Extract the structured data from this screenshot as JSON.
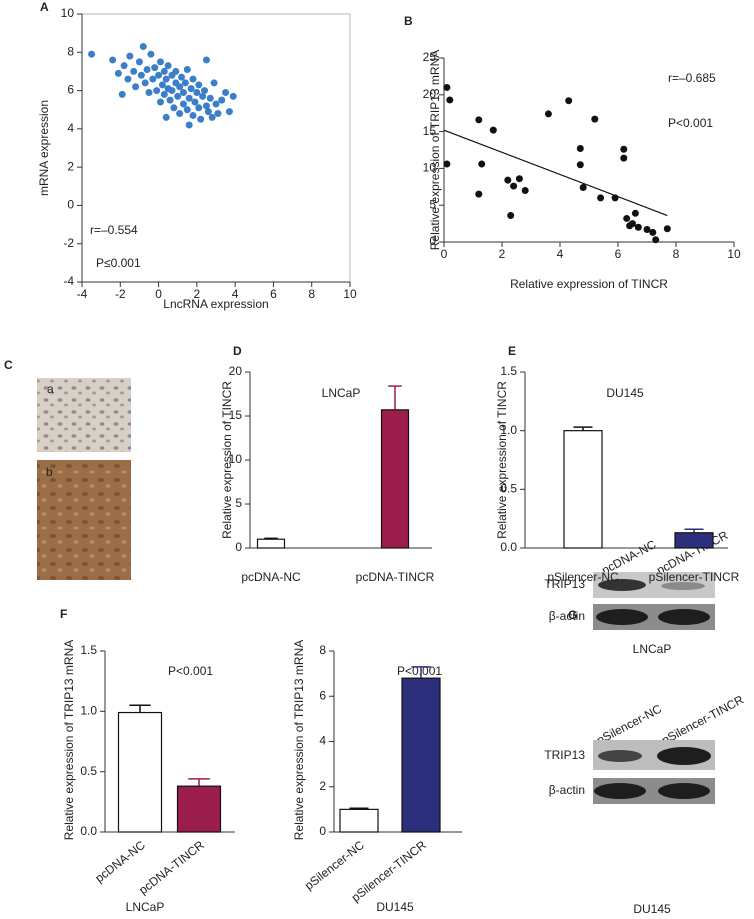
{
  "chart_data": [
    {
      "type": "scatter",
      "panel": "A",
      "color": "#3b7fca",
      "x": [
        -3.5,
        -2.4,
        -2.1,
        -1.8,
        -1.6,
        -1.5,
        -1.3,
        -1.2,
        -1.0,
        -0.9,
        -0.8,
        -0.7,
        -0.6,
        -0.5,
        -0.4,
        -0.3,
        -0.2,
        -0.1,
        0,
        0.1,
        0.1,
        0.2,
        0.3,
        0.3,
        0.4,
        0.5,
        0.5,
        0.6,
        0.7,
        0.7,
        0.8,
        0.9,
        0.9,
        1.0,
        1.1,
        1.1,
        1.2,
        1.3,
        1.3,
        1.4,
        1.5,
        1.5,
        1.6,
        1.7,
        1.8,
        1.8,
        1.9,
        2.0,
        2.1,
        2.1,
        2.2,
        2.3,
        2.4,
        2.5,
        2.6,
        2.7,
        2.8,
        2.9,
        3.0,
        3.1,
        3.3,
        3.5,
        3.7,
        2.5,
        -1.9,
        0.4,
        1.6,
        3.9
      ],
      "values": [
        7.9,
        7.6,
        6.9,
        7.3,
        6.6,
        7.8,
        7.0,
        6.2,
        7.5,
        6.8,
        8.3,
        6.4,
        7.1,
        5.9,
        7.9,
        6.6,
        7.2,
        6.0,
        6.8,
        5.4,
        7.5,
        6.3,
        7.0,
        5.8,
        6.6,
        6.1,
        7.3,
        5.5,
        6.8,
        6.0,
        5.1,
        6.4,
        7.0,
        5.7,
        6.2,
        4.8,
        6.7,
        5.9,
        5.3,
        6.4,
        5.0,
        7.1,
        5.6,
        6.1,
        4.7,
        6.6,
        5.4,
        5.9,
        5.1,
        6.3,
        4.5,
        5.7,
        6.0,
        5.2,
        4.9,
        5.6,
        4.6,
        6.4,
        5.3,
        4.8,
        5.5,
        5.9,
        4.9,
        7.6,
        5.8,
        4.6,
        4.2,
        5.7
      ],
      "xlabel": "LncRNA expression",
      "ylabel": "mRNA expression",
      "xlim": [
        -4,
        10
      ],
      "ylim": [
        -4,
        10
      ],
      "xticks": [
        -4,
        -2,
        0,
        2,
        4,
        6,
        8,
        10
      ],
      "yticks": [
        -4,
        -2,
        0,
        2,
        4,
        6,
        8,
        10
      ],
      "annotations": [
        "r=–0.554",
        "P≤0.001"
      ]
    },
    {
      "type": "scatter",
      "panel": "B",
      "color": "#111111",
      "x": [
        0.1,
        0.2,
        0.1,
        1.2,
        1.3,
        1.2,
        1.7,
        2.2,
        2.3,
        2.4,
        2.6,
        2.8,
        3.6,
        4.3,
        4.7,
        4.7,
        4.8,
        5.2,
        5.4,
        5.9,
        6.2,
        6.2,
        6.3,
        6.5,
        6.6,
        6.7,
        7.0,
        7.2,
        7.3,
        7.7,
        6.4
      ],
      "values": [
        21,
        19.3,
        10.6,
        16.6,
        10.6,
        6.5,
        15.2,
        8.4,
        3.6,
        7.6,
        8.6,
        7,
        17.4,
        19.2,
        10.5,
        12.7,
        7.4,
        16.7,
        6,
        6,
        12.6,
        11.4,
        3.2,
        2.5,
        3.9,
        2,
        1.7,
        1.3,
        0.3,
        1.8,
        2.2
      ],
      "fit_line": {
        "x": [
          0,
          7.7
        ],
        "values": [
          15.2,
          3.6
        ]
      },
      "xlabel": "Relative expression of TINCR",
      "ylabel": "Relative expression of TRIP13 mRNA",
      "xlim": [
        0,
        10
      ],
      "ylim": [
        0,
        25
      ],
      "xticks": [
        0,
        2,
        4,
        6,
        8,
        10
      ],
      "yticks": [
        0,
        5,
        10,
        15,
        20,
        25
      ],
      "annotations": [
        "r=–0.685",
        "P<0.001"
      ]
    },
    {
      "type": "bar",
      "panel": "D",
      "title": "LNCaP",
      "categories": [
        "pcDNA-NC",
        "pcDNA-TINCR"
      ],
      "values": [
        1.0,
        15.7
      ],
      "errors": [
        0.1,
        2.7
      ],
      "colors": [
        "#ffffff",
        "#9b1d4b"
      ],
      "ylabel": "Relative expression of TINCR",
      "ylim": [
        0,
        20
      ],
      "yticks": [
        0,
        5,
        10,
        15,
        20
      ]
    },
    {
      "type": "bar",
      "panel": "E",
      "title": "DU145",
      "categories": [
        "pSilencer-NC",
        "pSilencer-TINCR"
      ],
      "values": [
        1.0,
        0.13
      ],
      "errors": [
        0.03,
        0.03
      ],
      "colors": [
        "#ffffff",
        "#2b2f7c"
      ],
      "ylabel": "Relative expression of TINCR",
      "ylim": [
        0,
        1.5
      ],
      "yticks": [
        {
          "value": 0,
          "label": "0.0"
        },
        0.5,
        {
          "value": 1,
          "label": "1.0"
        },
        1.5
      ]
    },
    {
      "type": "bar",
      "panel": "F",
      "caption": "LNCaP",
      "categories": [
        "pcDNA-NC",
        "pcDNA-TINCR"
      ],
      "values": [
        0.99,
        0.38
      ],
      "errors": [
        0.06,
        0.06
      ],
      "colors": [
        "#ffffff",
        "#9b1d4b"
      ],
      "ylabel": "Relative expression of TRIP13 mRNA",
      "ylim": [
        0,
        1.5
      ],
      "yticks": [
        {
          "value": 0,
          "label": "0.0"
        },
        0.5,
        {
          "value": 1,
          "label": "1.0"
        },
        1.5
      ],
      "annotations": [
        "P<0.001"
      ]
    },
    {
      "type": "bar",
      "caption": "DU145",
      "categories": [
        "pSilencer-NC",
        "pSilencer-TINCR"
      ],
      "values": [
        1.0,
        6.8
      ],
      "errors": [
        0.05,
        0.5
      ],
      "colors": [
        "#ffffff",
        "#2b2f7c"
      ],
      "ylabel": "Relative expression of TRIP13 mRNA",
      "ylim": [
        0,
        8
      ],
      "yticks": [
        0,
        2,
        4,
        6,
        8
      ],
      "annotations": [
        "P<0.001"
      ]
    }
  ],
  "panel_c": {
    "panel": "C",
    "images": [
      "a",
      "b"
    ]
  },
  "panel_g": {
    "panel": "G",
    "blots": [
      {
        "columns": [
          "pcDNA-NC",
          "pcDNA-TINCR"
        ],
        "rows": [
          "TRIP13",
          "β-actin"
        ],
        "caption": "LNCaP"
      },
      {
        "columns": [
          "pSilencer-NC",
          "pSilencer-TINCR"
        ],
        "rows": [
          "TRIP13",
          "β-actin"
        ],
        "caption": "DU145"
      }
    ]
  }
}
